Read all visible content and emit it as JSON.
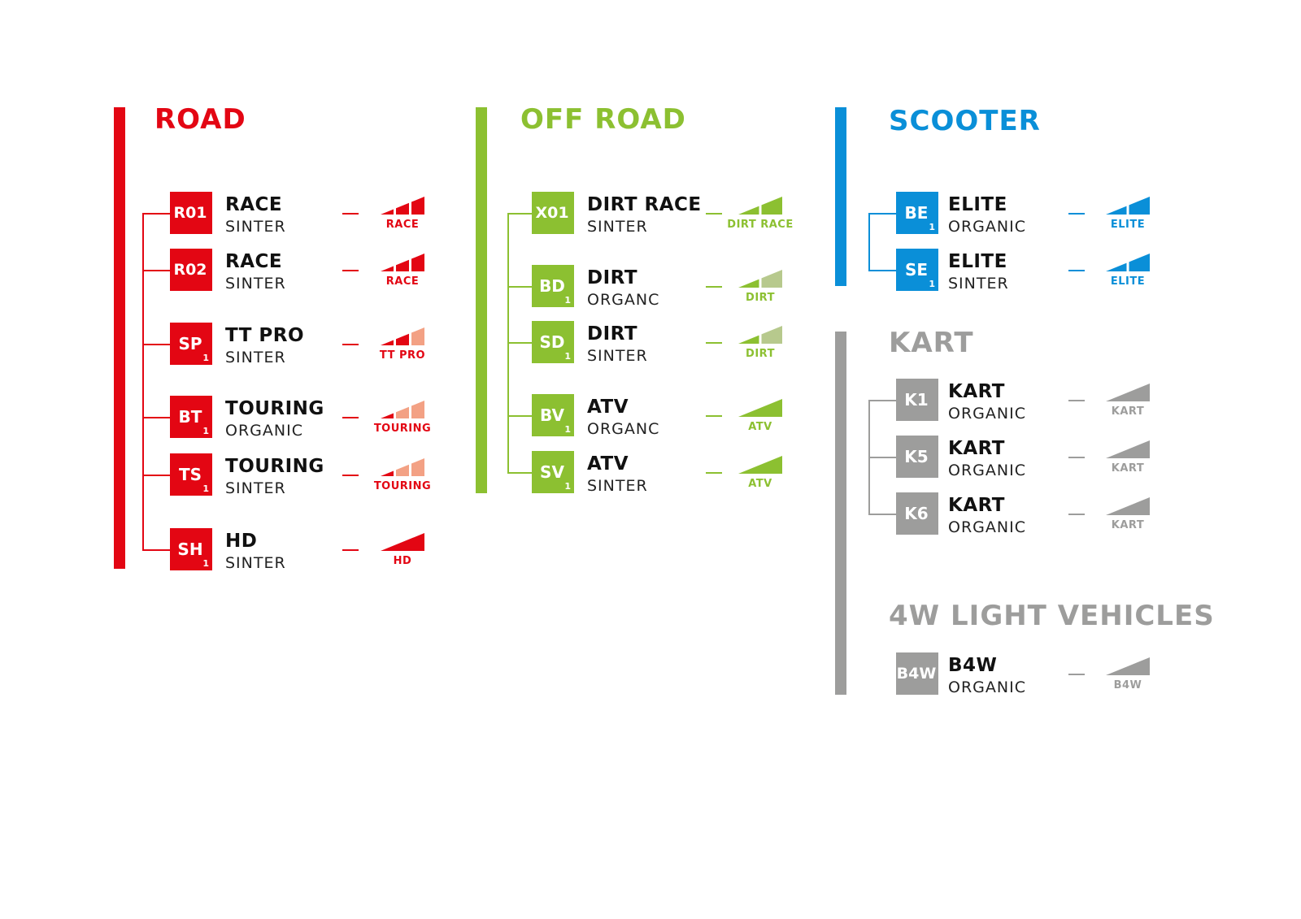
{
  "colors": {
    "road": "#e30613",
    "road_light": "#f3a184",
    "offroad": "#8cc031",
    "offroad_light": "#b7c98d",
    "scooter": "#0a8fd8",
    "scooter_light": "#8cc6ee",
    "kart": "#9d9d9c",
    "kart_light": "#cfcfcf"
  },
  "groups": [
    {
      "id": "road",
      "title": "ROAD",
      "color": "road",
      "items": [
        {
          "code": "R01",
          "sub": "",
          "name": "RACE",
          "type": "SINTER",
          "gauge": {
            "label": "RACE",
            "segments": [
              1,
              1,
              1
            ]
          }
        },
        {
          "code": "R02",
          "sub": "",
          "name": "RACE",
          "type": "SINTER",
          "gauge": {
            "label": "RACE",
            "segments": [
              1,
              1,
              1
            ]
          }
        },
        {
          "code": "SP",
          "sub": "1",
          "name": "TT PRO",
          "type": "SINTER",
          "gauge": {
            "label": "TT PRO",
            "segments": [
              1,
              1,
              0
            ]
          }
        },
        {
          "code": "BT",
          "sub": "1",
          "name": "TOURING",
          "type": "ORGANIC",
          "gauge": {
            "label": "TOURING",
            "segments": [
              1,
              0,
              0
            ]
          }
        },
        {
          "code": "TS",
          "sub": "1",
          "name": "TOURING",
          "type": "SINTER",
          "gauge": {
            "label": "TOURING",
            "segments": [
              1,
              0,
              0
            ]
          }
        },
        {
          "code": "SH",
          "sub": "1",
          "name": "HD",
          "type": "SINTER",
          "gauge": {
            "label": "HD",
            "segments": [
              1
            ]
          }
        }
      ]
    },
    {
      "id": "offroad",
      "title": "OFF ROAD",
      "color": "offroad",
      "items": [
        {
          "code": "X01",
          "sub": "",
          "name": "DIRT RACE",
          "type": "SINTER",
          "gauge": {
            "label": "DIRT RACE",
            "segments": [
              1,
              1
            ]
          }
        },
        {
          "code": "BD",
          "sub": "1",
          "name": "DIRT",
          "type": "ORGANC",
          "gauge": {
            "label": "DIRT",
            "segments": [
              1,
              0
            ]
          }
        },
        {
          "code": "SD",
          "sub": "1",
          "name": "DIRT",
          "type": "SINTER",
          "gauge": {
            "label": "DIRT",
            "segments": [
              1,
              0
            ]
          }
        },
        {
          "code": "BV",
          "sub": "1",
          "name": "ATV",
          "type": "ORGANC",
          "gauge": {
            "label": "ATV",
            "segments": [
              1
            ]
          }
        },
        {
          "code": "SV",
          "sub": "1",
          "name": "ATV",
          "type": "SINTER",
          "gauge": {
            "label": "ATV",
            "segments": [
              1
            ]
          }
        }
      ]
    },
    {
      "id": "scooter",
      "title": "SCOOTER",
      "color": "scooter",
      "items": [
        {
          "code": "BE",
          "sub": "1",
          "name": "ELITE",
          "type": "ORGANIC",
          "gauge": {
            "label": "ELITE",
            "segments": [
              1,
              1
            ]
          }
        },
        {
          "code": "SE",
          "sub": "1",
          "name": "ELITE",
          "type": "SINTER",
          "gauge": {
            "label": "ELITE",
            "segments": [
              1,
              1
            ]
          }
        }
      ]
    },
    {
      "id": "kart",
      "title": "KART",
      "color": "kart",
      "items": [
        {
          "code": "K1",
          "sub": "",
          "name": "KART",
          "type": "ORGANIC",
          "gauge": {
            "label": "KART",
            "segments": [
              1
            ]
          }
        },
        {
          "code": "K5",
          "sub": "",
          "name": "KART",
          "type": "ORGANIC",
          "gauge": {
            "label": "KART",
            "segments": [
              1
            ]
          }
        },
        {
          "code": "K6",
          "sub": "",
          "name": "KART",
          "type": "ORGANIC",
          "gauge": {
            "label": "KART",
            "segments": [
              1
            ]
          }
        }
      ]
    },
    {
      "id": "light4w",
      "title": "4W LIGHT VEHICLES",
      "color": "kart",
      "items": [
        {
          "code": "B4W",
          "sub": "",
          "name": "B4W",
          "type": "ORGANIC",
          "gauge": {
            "label": "B4W",
            "segments": [
              1
            ]
          }
        }
      ]
    }
  ]
}
